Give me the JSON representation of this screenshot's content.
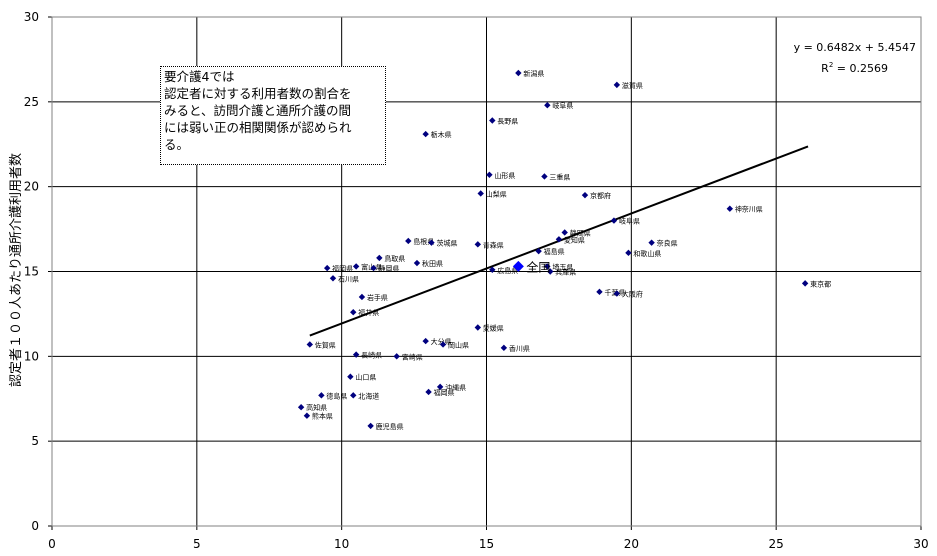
{
  "chart_data": {
    "type": "scatter",
    "ylabel": "認定者１００人あたり通所介護利用者数",
    "xlim": [
      0,
      30
    ],
    "ylim": [
      0,
      30
    ],
    "x_ticks": [
      "0",
      "5",
      "10",
      "15",
      "20",
      "25",
      "30"
    ],
    "y_ticks": [
      "0",
      "5",
      "10",
      "15",
      "20",
      "25",
      "30"
    ],
    "grid": "horizontal and vertical gridlines at major ticks",
    "annotation": "要介護4では\n認定者に対する利用者数の割合を\nみると、訪問介護と通所介護の間\nには弱い正の相関関係が認められ\nる。",
    "trendline": {
      "equation": "y = 0.6482x + 5.4547",
      "r2_label": "R",
      "r2_sup": "2",
      "r2_value": " = 0.2569",
      "slope": 0.6482,
      "intercept": 5.4547,
      "x_range": [
        8.9,
        26.1
      ]
    },
    "national": {
      "name": "全国",
      "x": 16.1,
      "y": 15.3
    },
    "points": [
      {
        "name": "新潟県",
        "x": 16.1,
        "y": 26.7
      },
      {
        "name": "滋賀県",
        "x": 19.5,
        "y": 26.0
      },
      {
        "name": "岐阜県",
        "x": 17.1,
        "y": 24.8
      },
      {
        "name": "長野県",
        "x": 15.2,
        "y": 23.9
      },
      {
        "name": "栃木県",
        "x": 12.9,
        "y": 23.1
      },
      {
        "name": "山形県",
        "x": 15.1,
        "y": 20.7
      },
      {
        "name": "三重県",
        "x": 17.0,
        "y": 20.6
      },
      {
        "name": "山梨県",
        "x": 14.8,
        "y": 19.6
      },
      {
        "name": "京都府",
        "x": 18.4,
        "y": 19.5
      },
      {
        "name": "神奈川県",
        "x": 23.4,
        "y": 18.7
      },
      {
        "name": "静岡県",
        "x": 17.7,
        "y": 17.3
      },
      {
        "name": "岐阜県",
        "x": 19.4,
        "y": 18.0
      },
      {
        "name": "愛知県",
        "x": 17.5,
        "y": 16.9
      },
      {
        "name": "島根県",
        "x": 12.3,
        "y": 16.8
      },
      {
        "name": "茨城県",
        "x": 13.1,
        "y": 16.7
      },
      {
        "name": "奈良県",
        "x": 20.7,
        "y": 16.7
      },
      {
        "name": "青森県",
        "x": 14.7,
        "y": 16.6
      },
      {
        "name": "福島県",
        "x": 16.8,
        "y": 16.2
      },
      {
        "name": "和歌山県",
        "x": 19.9,
        "y": 16.1
      },
      {
        "name": "鳥取県",
        "x": 11.3,
        "y": 15.8
      },
      {
        "name": "秋田県",
        "x": 12.6,
        "y": 15.5
      },
      {
        "name": "富山県",
        "x": 10.5,
        "y": 15.3
      },
      {
        "name": "福岡県",
        "x": 9.5,
        "y": 15.2
      },
      {
        "name": "静岡県",
        "x": 11.1,
        "y": 15.2
      },
      {
        "name": "埼玉県",
        "x": 17.1,
        "y": 15.3
      },
      {
        "name": "広島県",
        "x": 15.2,
        "y": 15.1
      },
      {
        "name": "兵庫県",
        "x": 17.2,
        "y": 15.0
      },
      {
        "name": "石川県",
        "x": 9.7,
        "y": 14.6
      },
      {
        "name": "東京都",
        "x": 26.0,
        "y": 14.3
      },
      {
        "name": "千葉県",
        "x": 18.9,
        "y": 13.8
      },
      {
        "name": "大阪府",
        "x": 19.5,
        "y": 13.7
      },
      {
        "name": "岩手県",
        "x": 10.7,
        "y": 13.5
      },
      {
        "name": "福井県",
        "x": 10.4,
        "y": 12.6
      },
      {
        "name": "愛媛県",
        "x": 14.7,
        "y": 11.7
      },
      {
        "name": "大分県",
        "x": 12.9,
        "y": 10.9
      },
      {
        "name": "佐賀県",
        "x": 8.9,
        "y": 10.7
      },
      {
        "name": "岡山県",
        "x": 13.5,
        "y": 10.7
      },
      {
        "name": "香川県",
        "x": 15.6,
        "y": 10.5
      },
      {
        "name": "長崎県",
        "x": 10.5,
        "y": 10.1
      },
      {
        "name": "宮崎県",
        "x": 11.9,
        "y": 10.0
      },
      {
        "name": "山口県",
        "x": 10.3,
        "y": 8.8
      },
      {
        "name": "沖縄県",
        "x": 13.4,
        "y": 8.2
      },
      {
        "name": "徳島県",
        "x": 9.3,
        "y": 7.7
      },
      {
        "name": "北海道",
        "x": 10.4,
        "y": 7.7
      },
      {
        "name": "福岡県",
        "x": 13.0,
        "y": 7.9
      },
      {
        "name": "高知県",
        "x": 8.6,
        "y": 7.0
      },
      {
        "name": "熊本県",
        "x": 8.8,
        "y": 6.5
      },
      {
        "name": "鹿児島県",
        "x": 11.0,
        "y": 5.9
      }
    ]
  }
}
